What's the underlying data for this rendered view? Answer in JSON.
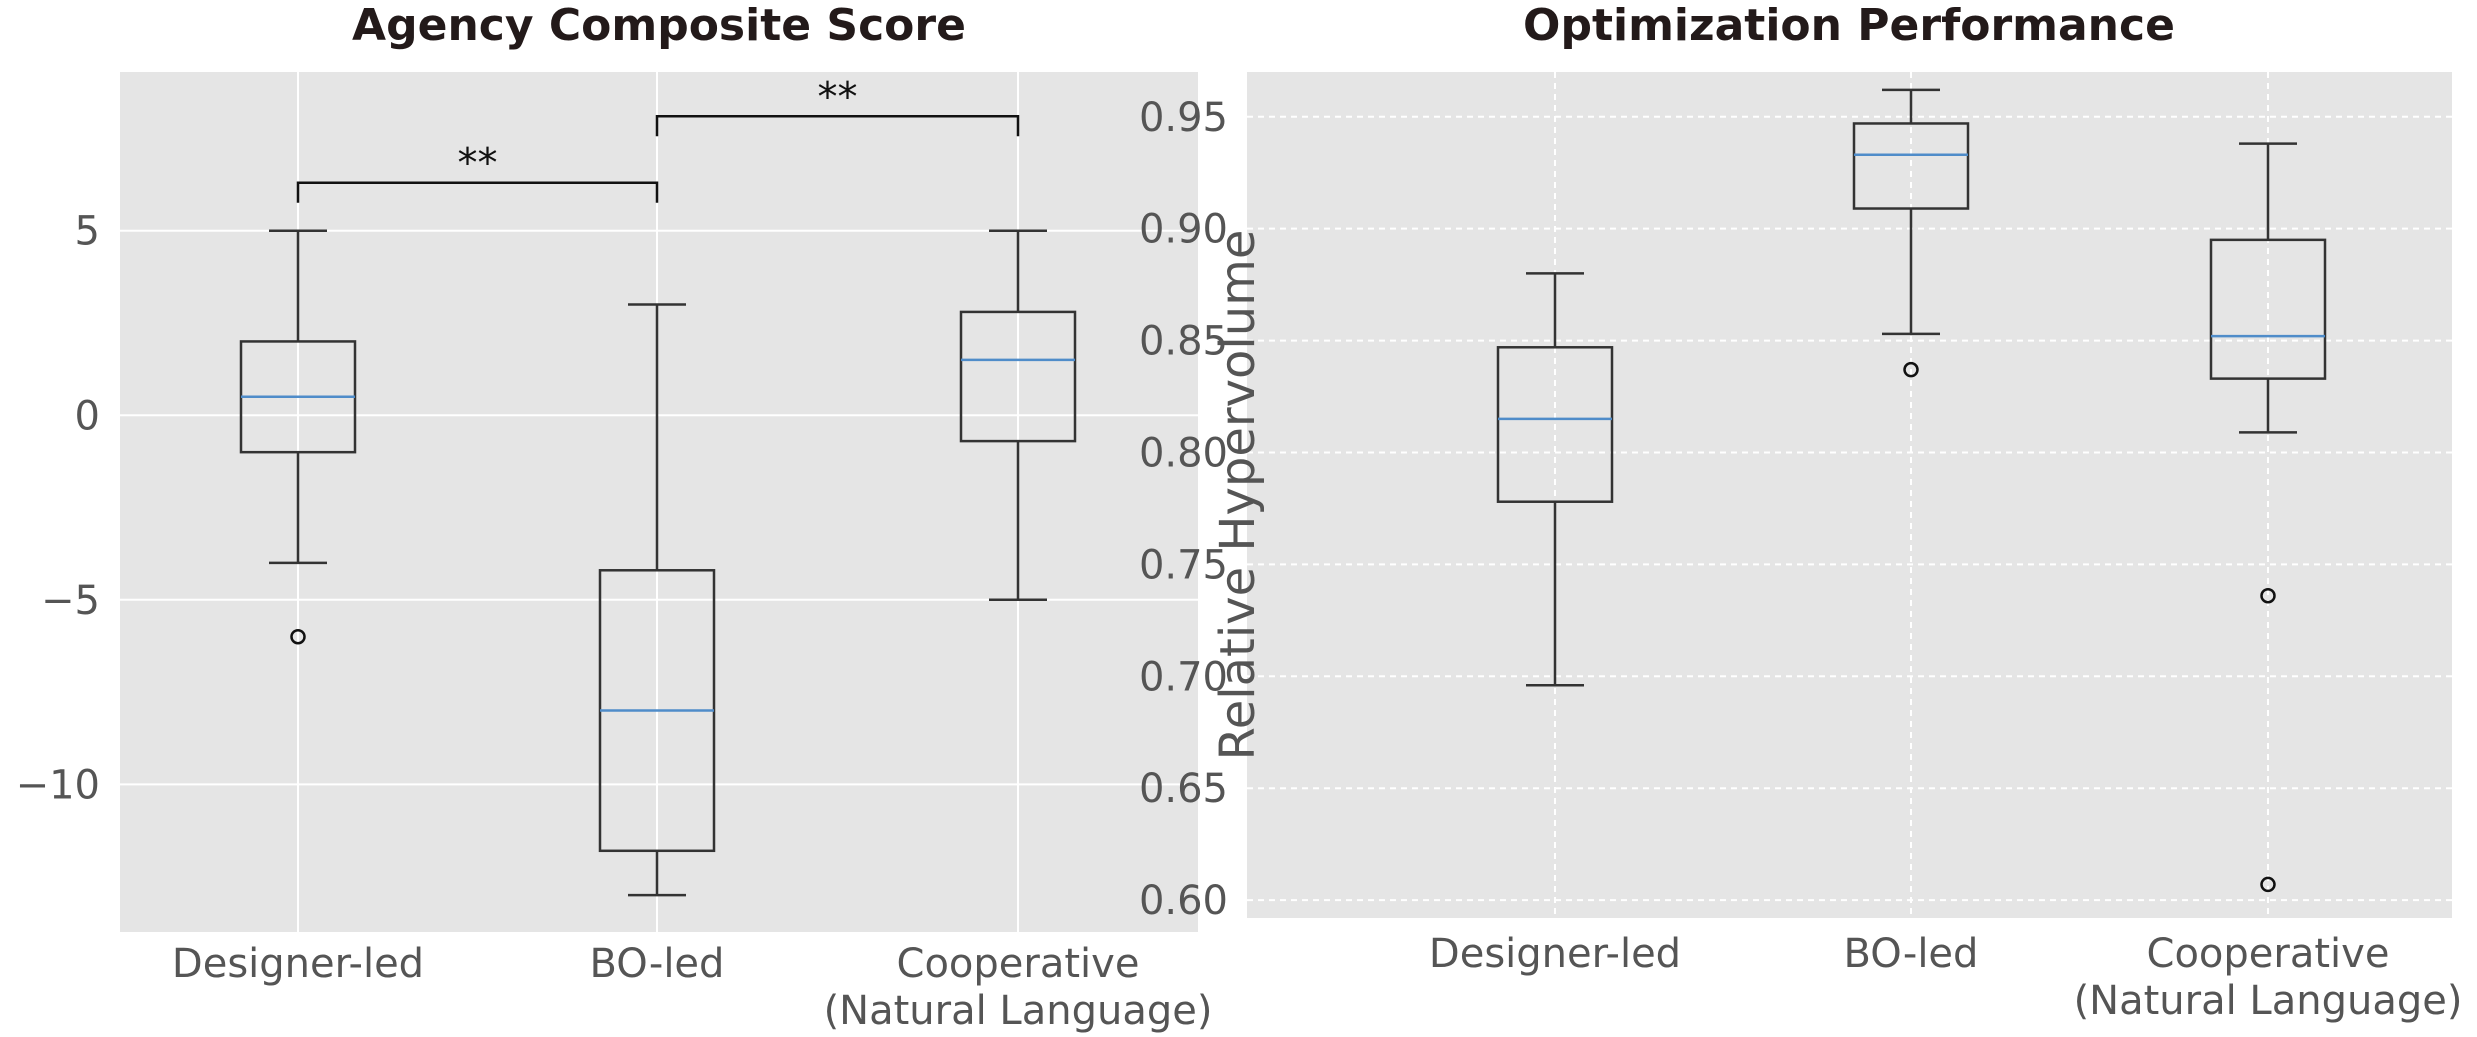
{
  "chart_data": [
    {
      "type": "box",
      "title": "Agency Composite Score",
      "xlabel": "",
      "ylabel": "",
      "categories": [
        "Designer-led",
        "BO-led",
        [
          "Cooperative",
          "(Natural Language)"
        ]
      ],
      "ylim": [
        -14,
        9.3
      ],
      "yticks": [
        5,
        0,
        -5,
        -10
      ],
      "ytick_labels": [
        "5",
        "0",
        "−5",
        "−10"
      ],
      "grid": "solid",
      "colors": {
        "background": "#e5e5e5",
        "grid": "#ffffff",
        "box": "#333333",
        "median": "#4f8cc9"
      },
      "boxes": [
        {
          "q1": -1,
          "median": 0.5,
          "q3": 2,
          "whisker_low": -4,
          "whisker_high": 5,
          "outliers": [
            -6
          ]
        },
        {
          "q1": -11.8,
          "median": -8,
          "q3": -4.2,
          "whisker_low": -13,
          "whisker_high": 3,
          "outliers": []
        },
        {
          "q1": -0.7,
          "median": 1.5,
          "q3": 2.8,
          "whisker_low": -5,
          "whisker_high": 5,
          "outliers": []
        }
      ],
      "significance": [
        {
          "from": 0,
          "to": 1,
          "y": 6.3,
          "label": "**"
        },
        {
          "from": 1,
          "to": 2,
          "y": 8.1,
          "label": "**"
        }
      ]
    },
    {
      "type": "box",
      "title": "Optimization Performance",
      "xlabel": "",
      "ylabel": "Relative Hypervolume",
      "categories": [
        "Designer-led",
        "BO-led",
        [
          "Cooperative",
          "(Natural Language)"
        ]
      ],
      "ylim": [
        0.592,
        0.97
      ],
      "yticks": [
        0.95,
        0.9,
        0.85,
        0.8,
        0.75,
        0.7,
        0.65,
        0.6
      ],
      "ytick_labels": [
        "0.95",
        "0.90",
        "0.85",
        "0.80",
        "0.75",
        "0.70",
        "0.65",
        "0.60"
      ],
      "grid": "dashed",
      "colors": {
        "background": "#e5e5e5",
        "grid": "#ffffff",
        "box": "#333333",
        "median": "#4f8cc9"
      },
      "boxes": [
        {
          "q1": 0.778,
          "median": 0.815,
          "q3": 0.847,
          "whisker_low": 0.696,
          "whisker_high": 0.88,
          "outliers": []
        },
        {
          "q1": 0.909,
          "median": 0.933,
          "q3": 0.947,
          "whisker_low": 0.853,
          "whisker_high": 0.962,
          "outliers": [
            0.837
          ]
        },
        {
          "q1": 0.833,
          "median": 0.852,
          "q3": 0.895,
          "whisker_low": 0.809,
          "whisker_high": 0.938,
          "outliers": [
            0.736,
            0.607
          ]
        }
      ],
      "significance": []
    }
  ]
}
